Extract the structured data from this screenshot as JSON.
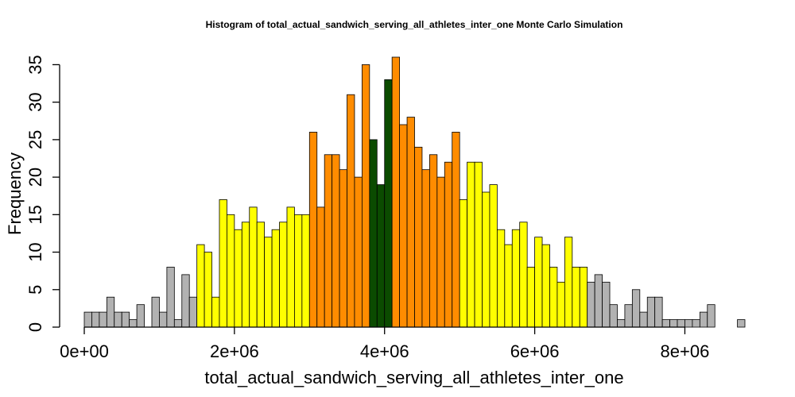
{
  "chart_data": {
    "type": "bar",
    "title": "Histogram of  total_actual_sandwich_serving_all_athletes_inter_one  Monte Carlo Simulation",
    "xlabel": "total_actual_sandwich_serving_all_athletes_inter_one",
    "ylabel": "Frequency",
    "xlim": [
      0,
      8800000
    ],
    "ylim": [
      0,
      36
    ],
    "grid": false,
    "bin_start": 0,
    "bin_width": 100000,
    "x_ticks": [
      0,
      2000000,
      4000000,
      6000000,
      8000000
    ],
    "x_tick_labels": [
      "0e+00",
      "2e+06",
      "4e+06",
      "6e+06",
      "8e+06"
    ],
    "y_ticks": [
      0,
      5,
      10,
      15,
      20,
      25,
      30,
      35
    ],
    "y_tick_labels": [
      "0",
      "5",
      "10",
      "15",
      "20",
      "25",
      "30",
      "35"
    ],
    "colors": {
      "gray": "#b2b2b2",
      "yellow": "#ffff00",
      "orange": "#ff8c00",
      "darkgreen": "#0b4b00"
    },
    "bins": [
      {
        "x": 0,
        "count": 2,
        "color": "gray"
      },
      {
        "x": 100000,
        "count": 2,
        "color": "gray"
      },
      {
        "x": 200000,
        "count": 2,
        "color": "gray"
      },
      {
        "x": 300000,
        "count": 4,
        "color": "gray"
      },
      {
        "x": 400000,
        "count": 2,
        "color": "gray"
      },
      {
        "x": 500000,
        "count": 2,
        "color": "gray"
      },
      {
        "x": 600000,
        "count": 1,
        "color": "gray"
      },
      {
        "x": 700000,
        "count": 3,
        "color": "gray"
      },
      {
        "x": 800000,
        "count": 0,
        "color": "gray"
      },
      {
        "x": 900000,
        "count": 4,
        "color": "gray"
      },
      {
        "x": 1000000,
        "count": 2,
        "color": "gray"
      },
      {
        "x": 1100000,
        "count": 8,
        "color": "gray"
      },
      {
        "x": 1200000,
        "count": 1,
        "color": "gray"
      },
      {
        "x": 1300000,
        "count": 7,
        "color": "gray"
      },
      {
        "x": 1400000,
        "count": 4,
        "color": "gray"
      },
      {
        "x": 1500000,
        "count": 11,
        "color": "yellow"
      },
      {
        "x": 1600000,
        "count": 10,
        "color": "yellow"
      },
      {
        "x": 1700000,
        "count": 4,
        "color": "yellow"
      },
      {
        "x": 1800000,
        "count": 17,
        "color": "yellow"
      },
      {
        "x": 1900000,
        "count": 15,
        "color": "yellow"
      },
      {
        "x": 2000000,
        "count": 13,
        "color": "yellow"
      },
      {
        "x": 2100000,
        "count": 14,
        "color": "yellow"
      },
      {
        "x": 2200000,
        "count": 16,
        "color": "yellow"
      },
      {
        "x": 2300000,
        "count": 14,
        "color": "yellow"
      },
      {
        "x": 2400000,
        "count": 12,
        "color": "yellow"
      },
      {
        "x": 2500000,
        "count": 13,
        "color": "yellow"
      },
      {
        "x": 2600000,
        "count": 14,
        "color": "yellow"
      },
      {
        "x": 2700000,
        "count": 16,
        "color": "yellow"
      },
      {
        "x": 2800000,
        "count": 15,
        "color": "yellow"
      },
      {
        "x": 2900000,
        "count": 15,
        "color": "yellow"
      },
      {
        "x": 3000000,
        "count": 26,
        "color": "orange"
      },
      {
        "x": 3100000,
        "count": 16,
        "color": "orange"
      },
      {
        "x": 3200000,
        "count": 23,
        "color": "orange"
      },
      {
        "x": 3300000,
        "count": 23,
        "color": "orange"
      },
      {
        "x": 3400000,
        "count": 21,
        "color": "orange"
      },
      {
        "x": 3500000,
        "count": 31,
        "color": "orange"
      },
      {
        "x": 3600000,
        "count": 20,
        "color": "orange"
      },
      {
        "x": 3700000,
        "count": 35,
        "color": "orange"
      },
      {
        "x": 3800000,
        "count": 25,
        "color": "darkgreen"
      },
      {
        "x": 3900000,
        "count": 19,
        "color": "darkgreen"
      },
      {
        "x": 4000000,
        "count": 33,
        "color": "darkgreen"
      },
      {
        "x": 4100000,
        "count": 36,
        "color": "orange"
      },
      {
        "x": 4200000,
        "count": 27,
        "color": "orange"
      },
      {
        "x": 4300000,
        "count": 28,
        "color": "orange"
      },
      {
        "x": 4400000,
        "count": 24,
        "color": "orange"
      },
      {
        "x": 4500000,
        "count": 21,
        "color": "orange"
      },
      {
        "x": 4600000,
        "count": 23,
        "color": "orange"
      },
      {
        "x": 4700000,
        "count": 20,
        "color": "orange"
      },
      {
        "x": 4800000,
        "count": 22,
        "color": "orange"
      },
      {
        "x": 4900000,
        "count": 26,
        "color": "orange"
      },
      {
        "x": 5000000,
        "count": 17,
        "color": "yellow"
      },
      {
        "x": 5100000,
        "count": 22,
        "color": "yellow"
      },
      {
        "x": 5200000,
        "count": 22,
        "color": "yellow"
      },
      {
        "x": 5300000,
        "count": 18,
        "color": "yellow"
      },
      {
        "x": 5400000,
        "count": 19,
        "color": "yellow"
      },
      {
        "x": 5500000,
        "count": 13,
        "color": "yellow"
      },
      {
        "x": 5600000,
        "count": 11,
        "color": "yellow"
      },
      {
        "x": 5700000,
        "count": 13,
        "color": "yellow"
      },
      {
        "x": 5800000,
        "count": 14,
        "color": "yellow"
      },
      {
        "x": 5900000,
        "count": 8,
        "color": "yellow"
      },
      {
        "x": 6000000,
        "count": 12,
        "color": "yellow"
      },
      {
        "x": 6100000,
        "count": 11,
        "color": "yellow"
      },
      {
        "x": 6200000,
        "count": 8,
        "color": "yellow"
      },
      {
        "x": 6300000,
        "count": 6,
        "color": "yellow"
      },
      {
        "x": 6400000,
        "count": 12,
        "color": "yellow"
      },
      {
        "x": 6500000,
        "count": 8,
        "color": "yellow"
      },
      {
        "x": 6600000,
        "count": 8,
        "color": "yellow"
      },
      {
        "x": 6700000,
        "count": 6,
        "color": "gray"
      },
      {
        "x": 6800000,
        "count": 7,
        "color": "gray"
      },
      {
        "x": 6900000,
        "count": 6,
        "color": "gray"
      },
      {
        "x": 7000000,
        "count": 3,
        "color": "gray"
      },
      {
        "x": 7100000,
        "count": 1,
        "color": "gray"
      },
      {
        "x": 7200000,
        "count": 3,
        "color": "gray"
      },
      {
        "x": 7300000,
        "count": 5,
        "color": "gray"
      },
      {
        "x": 7400000,
        "count": 2,
        "color": "gray"
      },
      {
        "x": 7500000,
        "count": 4,
        "color": "gray"
      },
      {
        "x": 7600000,
        "count": 4,
        "color": "gray"
      },
      {
        "x": 7700000,
        "count": 1,
        "color": "gray"
      },
      {
        "x": 7800000,
        "count": 1,
        "color": "gray"
      },
      {
        "x": 7900000,
        "count": 1,
        "color": "gray"
      },
      {
        "x": 8000000,
        "count": 1,
        "color": "gray"
      },
      {
        "x": 8100000,
        "count": 1,
        "color": "gray"
      },
      {
        "x": 8200000,
        "count": 2,
        "color": "gray"
      },
      {
        "x": 8300000,
        "count": 3,
        "color": "gray"
      },
      {
        "x": 8400000,
        "count": 0,
        "color": "gray"
      },
      {
        "x": 8500000,
        "count": 0,
        "color": "gray"
      },
      {
        "x": 8600000,
        "count": 0,
        "color": "gray"
      },
      {
        "x": 8700000,
        "count": 1,
        "color": "gray"
      }
    ]
  }
}
